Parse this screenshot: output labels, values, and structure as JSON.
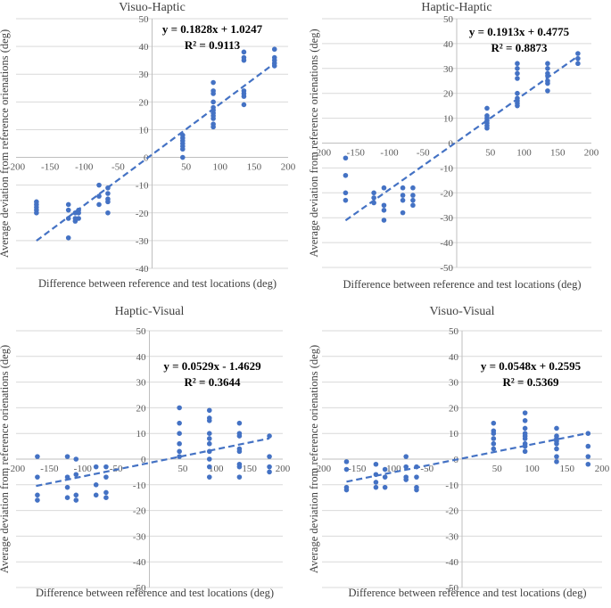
{
  "chart_data": [
    {
      "type": "scatter",
      "title": "Visuo-Haptic",
      "xlabel": "Difference between reference and test locations (deg)",
      "ylabel": "Average deviation from reference orienations (deg)",
      "xlim": [
        -200,
        200
      ],
      "ylim": [
        -40,
        50
      ],
      "x_ticks": [
        -200,
        -150,
        -100,
        -50,
        0,
        50,
        100,
        150,
        200
      ],
      "y_ticks": [
        -40,
        -30,
        -20,
        -10,
        0,
        10,
        20,
        30,
        40,
        50
      ],
      "equation": "y = 0.1828x + 1.0247",
      "r_squared": "R² = 0.9113",
      "trendline": {
        "slope": 0.1828,
        "intercept": 1.0247,
        "x_range": [
          -170,
          180
        ]
      },
      "points": [
        [
          -170,
          -16
        ],
        [
          -170,
          -17
        ],
        [
          -170,
          -18
        ],
        [
          -170,
          -19
        ],
        [
          -170,
          -20
        ],
        [
          -123,
          -17
        ],
        [
          -123,
          -19
        ],
        [
          -123,
          -22
        ],
        [
          -123,
          -29
        ],
        [
          -113,
          -20
        ],
        [
          -113,
          -22
        ],
        [
          -113,
          -23
        ],
        [
          -108,
          -19
        ],
        [
          -108,
          -20
        ],
        [
          -108,
          -22
        ],
        [
          -78,
          -10
        ],
        [
          -78,
          -14
        ],
        [
          -78,
          -17
        ],
        [
          -65,
          -11
        ],
        [
          -65,
          -13
        ],
        [
          -65,
          -15
        ],
        [
          -65,
          -16
        ],
        [
          -65,
          -20
        ],
        [
          45,
          0
        ],
        [
          45,
          3
        ],
        [
          45,
          4
        ],
        [
          45,
          5
        ],
        [
          45,
          6
        ],
        [
          45,
          7
        ],
        [
          45,
          8
        ],
        [
          90,
          11
        ],
        [
          90,
          12
        ],
        [
          90,
          14
        ],
        [
          90,
          15
        ],
        [
          90,
          16
        ],
        [
          90,
          17
        ],
        [
          90,
          18
        ],
        [
          90,
          20
        ],
        [
          90,
          23
        ],
        [
          90,
          24
        ],
        [
          90,
          27
        ],
        [
          135,
          19
        ],
        [
          135,
          22
        ],
        [
          135,
          23
        ],
        [
          135,
          24
        ],
        [
          135,
          35
        ],
        [
          135,
          36
        ],
        [
          135,
          38
        ],
        [
          180,
          33
        ],
        [
          180,
          34
        ],
        [
          180,
          35
        ],
        [
          180,
          36
        ],
        [
          180,
          39
        ]
      ]
    },
    {
      "type": "scatter",
      "title": "Haptic-Haptic",
      "xlabel": "Difference between reference and test locations (deg)",
      "ylabel": "Average deviation from reference orienations (deg)",
      "xlim": [
        -200,
        200
      ],
      "ylim": [
        -50,
        50
      ],
      "x_ticks": [
        -200,
        -150,
        -100,
        -50,
        0,
        50,
        100,
        150,
        200
      ],
      "y_ticks": [
        -50,
        -40,
        -30,
        -20,
        -10,
        0,
        10,
        20,
        30,
        40,
        50
      ],
      "equation": "y = 0.1913x + 0.4775",
      "r_squared": "R² = 0.8873",
      "trendline": {
        "slope": 0.1913,
        "intercept": 0.4775,
        "x_range": [
          -165,
          180
        ]
      },
      "points": [
        [
          -165,
          -6
        ],
        [
          -165,
          -13
        ],
        [
          -165,
          -20
        ],
        [
          -165,
          -23
        ],
        [
          -123,
          -20
        ],
        [
          -123,
          -22
        ],
        [
          -123,
          -24
        ],
        [
          -108,
          -18
        ],
        [
          -108,
          -25
        ],
        [
          -108,
          -27
        ],
        [
          -108,
          -31
        ],
        [
          -80,
          -18
        ],
        [
          -80,
          -21
        ],
        [
          -80,
          -23
        ],
        [
          -80,
          -28
        ],
        [
          -65,
          -18
        ],
        [
          -65,
          -21
        ],
        [
          -65,
          -23
        ],
        [
          -65,
          -25
        ],
        [
          45,
          6
        ],
        [
          45,
          7
        ],
        [
          45,
          8
        ],
        [
          45,
          9
        ],
        [
          45,
          10
        ],
        [
          45,
          11
        ],
        [
          45,
          14
        ],
        [
          90,
          15
        ],
        [
          90,
          16
        ],
        [
          90,
          17
        ],
        [
          90,
          18
        ],
        [
          90,
          20
        ],
        [
          90,
          26
        ],
        [
          90,
          28
        ],
        [
          90,
          30
        ],
        [
          90,
          32
        ],
        [
          135,
          21
        ],
        [
          135,
          24
        ],
        [
          135,
          25
        ],
        [
          135,
          27
        ],
        [
          135,
          28
        ],
        [
          135,
          30
        ],
        [
          135,
          32
        ],
        [
          180,
          32
        ],
        [
          180,
          34
        ],
        [
          180,
          36
        ]
      ]
    },
    {
      "type": "scatter",
      "title": "Haptic-Visual",
      "xlabel": "Difference between reference and test locations (deg)",
      "ylabel": "Average deviation from reference orienations (deg)",
      "xlim": [
        -200,
        200
      ],
      "ylim": [
        -50,
        50
      ],
      "x_ticks": [
        -200,
        -150,
        -100,
        -50,
        0,
        50,
        100,
        150,
        200
      ],
      "y_ticks": [
        -50,
        -40,
        -30,
        -20,
        -10,
        0,
        10,
        20,
        30,
        40,
        50
      ],
      "equation": "y = 0.0529x - 1.4629",
      "r_squared": "R² = 0.3644",
      "trendline": {
        "slope": 0.0529,
        "intercept": -1.4629,
        "x_range": [
          -170,
          180
        ]
      },
      "points": [
        [
          -168,
          1
        ],
        [
          -168,
          -7
        ],
        [
          -168,
          -14
        ],
        [
          -168,
          -16
        ],
        [
          -123,
          1
        ],
        [
          -123,
          -7
        ],
        [
          -123,
          -11
        ],
        [
          -123,
          -15
        ],
        [
          -110,
          0
        ],
        [
          -110,
          -6
        ],
        [
          -110,
          -14
        ],
        [
          -110,
          -16
        ],
        [
          -80,
          -3
        ],
        [
          -80,
          -10
        ],
        [
          -80,
          -14
        ],
        [
          -65,
          -3
        ],
        [
          -65,
          -7
        ],
        [
          -65,
          -13
        ],
        [
          -65,
          -15
        ],
        [
          45,
          20
        ],
        [
          45,
          14
        ],
        [
          45,
          10
        ],
        [
          45,
          6
        ],
        [
          45,
          3
        ],
        [
          45,
          1
        ],
        [
          90,
          19
        ],
        [
          90,
          16
        ],
        [
          90,
          15
        ],
        [
          90,
          10
        ],
        [
          90,
          8
        ],
        [
          90,
          6
        ],
        [
          90,
          3
        ],
        [
          90,
          0
        ],
        [
          90,
          -3
        ],
        [
          90,
          -7
        ],
        [
          135,
          14
        ],
        [
          135,
          10
        ],
        [
          135,
          9
        ],
        [
          135,
          4
        ],
        [
          135,
          3
        ],
        [
          135,
          -2
        ],
        [
          135,
          -3
        ],
        [
          135,
          -7
        ],
        [
          180,
          9
        ],
        [
          180,
          1
        ],
        [
          180,
          -3
        ],
        [
          180,
          -5
        ]
      ]
    },
    {
      "type": "scatter",
      "title": "Visuo-Visual",
      "xlabel": "Difference between reference and test locations (deg)",
      "ylabel": "Average deviation from reference orienations (deg)",
      "xlim": [
        -200,
        200
      ],
      "ylim": [
        -50,
        50
      ],
      "x_ticks": [
        -200,
        -150,
        -100,
        -50,
        0,
        50,
        100,
        150,
        200
      ],
      "y_ticks": [
        -50,
        -40,
        -30,
        -20,
        -10,
        0,
        10,
        20,
        30,
        40,
        50
      ],
      "equation": "y = 0.0548x + 0.2595",
      "r_squared": "R² = 0.5369",
      "trendline": {
        "slope": 0.0548,
        "intercept": 0.2595,
        "x_range": [
          -165,
          180
        ]
      },
      "points": [
        [
          -165,
          -1
        ],
        [
          -165,
          -4
        ],
        [
          -165,
          -11
        ],
        [
          -165,
          -12
        ],
        [
          -123,
          -2
        ],
        [
          -123,
          -6
        ],
        [
          -123,
          -9
        ],
        [
          -123,
          -11
        ],
        [
          -110,
          -4
        ],
        [
          -110,
          -7
        ],
        [
          -110,
          -11
        ],
        [
          -80,
          1
        ],
        [
          -80,
          -3
        ],
        [
          -80,
          -7
        ],
        [
          -80,
          -8
        ],
        [
          -65,
          -3
        ],
        [
          -65,
          -7
        ],
        [
          -65,
          -11
        ],
        [
          -65,
          -12
        ],
        [
          45,
          14
        ],
        [
          45,
          11
        ],
        [
          45,
          10
        ],
        [
          45,
          8
        ],
        [
          45,
          6
        ],
        [
          45,
          4
        ],
        [
          90,
          18
        ],
        [
          90,
          15
        ],
        [
          90,
          12
        ],
        [
          90,
          10
        ],
        [
          90,
          9
        ],
        [
          90,
          8
        ],
        [
          90,
          6
        ],
        [
          90,
          5
        ],
        [
          90,
          3
        ],
        [
          135,
          12
        ],
        [
          135,
          9
        ],
        [
          135,
          8
        ],
        [
          135,
          7
        ],
        [
          135,
          6
        ],
        [
          135,
          4
        ],
        [
          135,
          1
        ],
        [
          135,
          -1
        ],
        [
          180,
          10
        ],
        [
          180,
          5
        ],
        [
          180,
          1
        ],
        [
          180,
          -2
        ]
      ]
    }
  ],
  "colors": {
    "marker": "#4472C4",
    "gridline": "#d9d9d9",
    "axis": "#bfbfbf",
    "tick_text": "#595959",
    "title_text": "#404040",
    "equation_text": "#000000"
  }
}
